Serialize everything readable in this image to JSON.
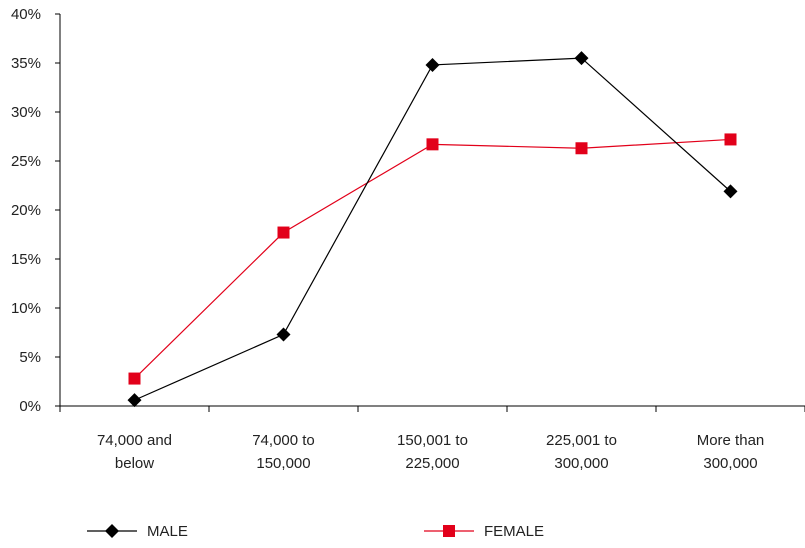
{
  "chart_data": {
    "type": "line",
    "title": "",
    "xlabel": "",
    "ylabel": "",
    "categories": [
      [
        "74,000 and",
        "below"
      ],
      [
        "74,000 to",
        "150,000"
      ],
      [
        "150,001 to",
        "225,000"
      ],
      [
        "225,001 to",
        "300,000"
      ],
      [
        "More than",
        "300,000"
      ]
    ],
    "yticks": [
      "0%",
      "5%",
      "10%",
      "15%",
      "20%",
      "25%",
      "30%",
      "35%",
      "40%"
    ],
    "ylim": [
      0,
      40
    ],
    "grid": false,
    "legend_position": "bottom",
    "series": [
      {
        "name": "MALE",
        "values": [
          0.6,
          7.3,
          34.8,
          35.5,
          21.9
        ],
        "color": "#000000",
        "marker": "diamond"
      },
      {
        "name": "FEMALE",
        "values": [
          2.8,
          17.7,
          26.7,
          26.3,
          27.2
        ],
        "color": "#e2001a",
        "marker": "square"
      }
    ]
  }
}
